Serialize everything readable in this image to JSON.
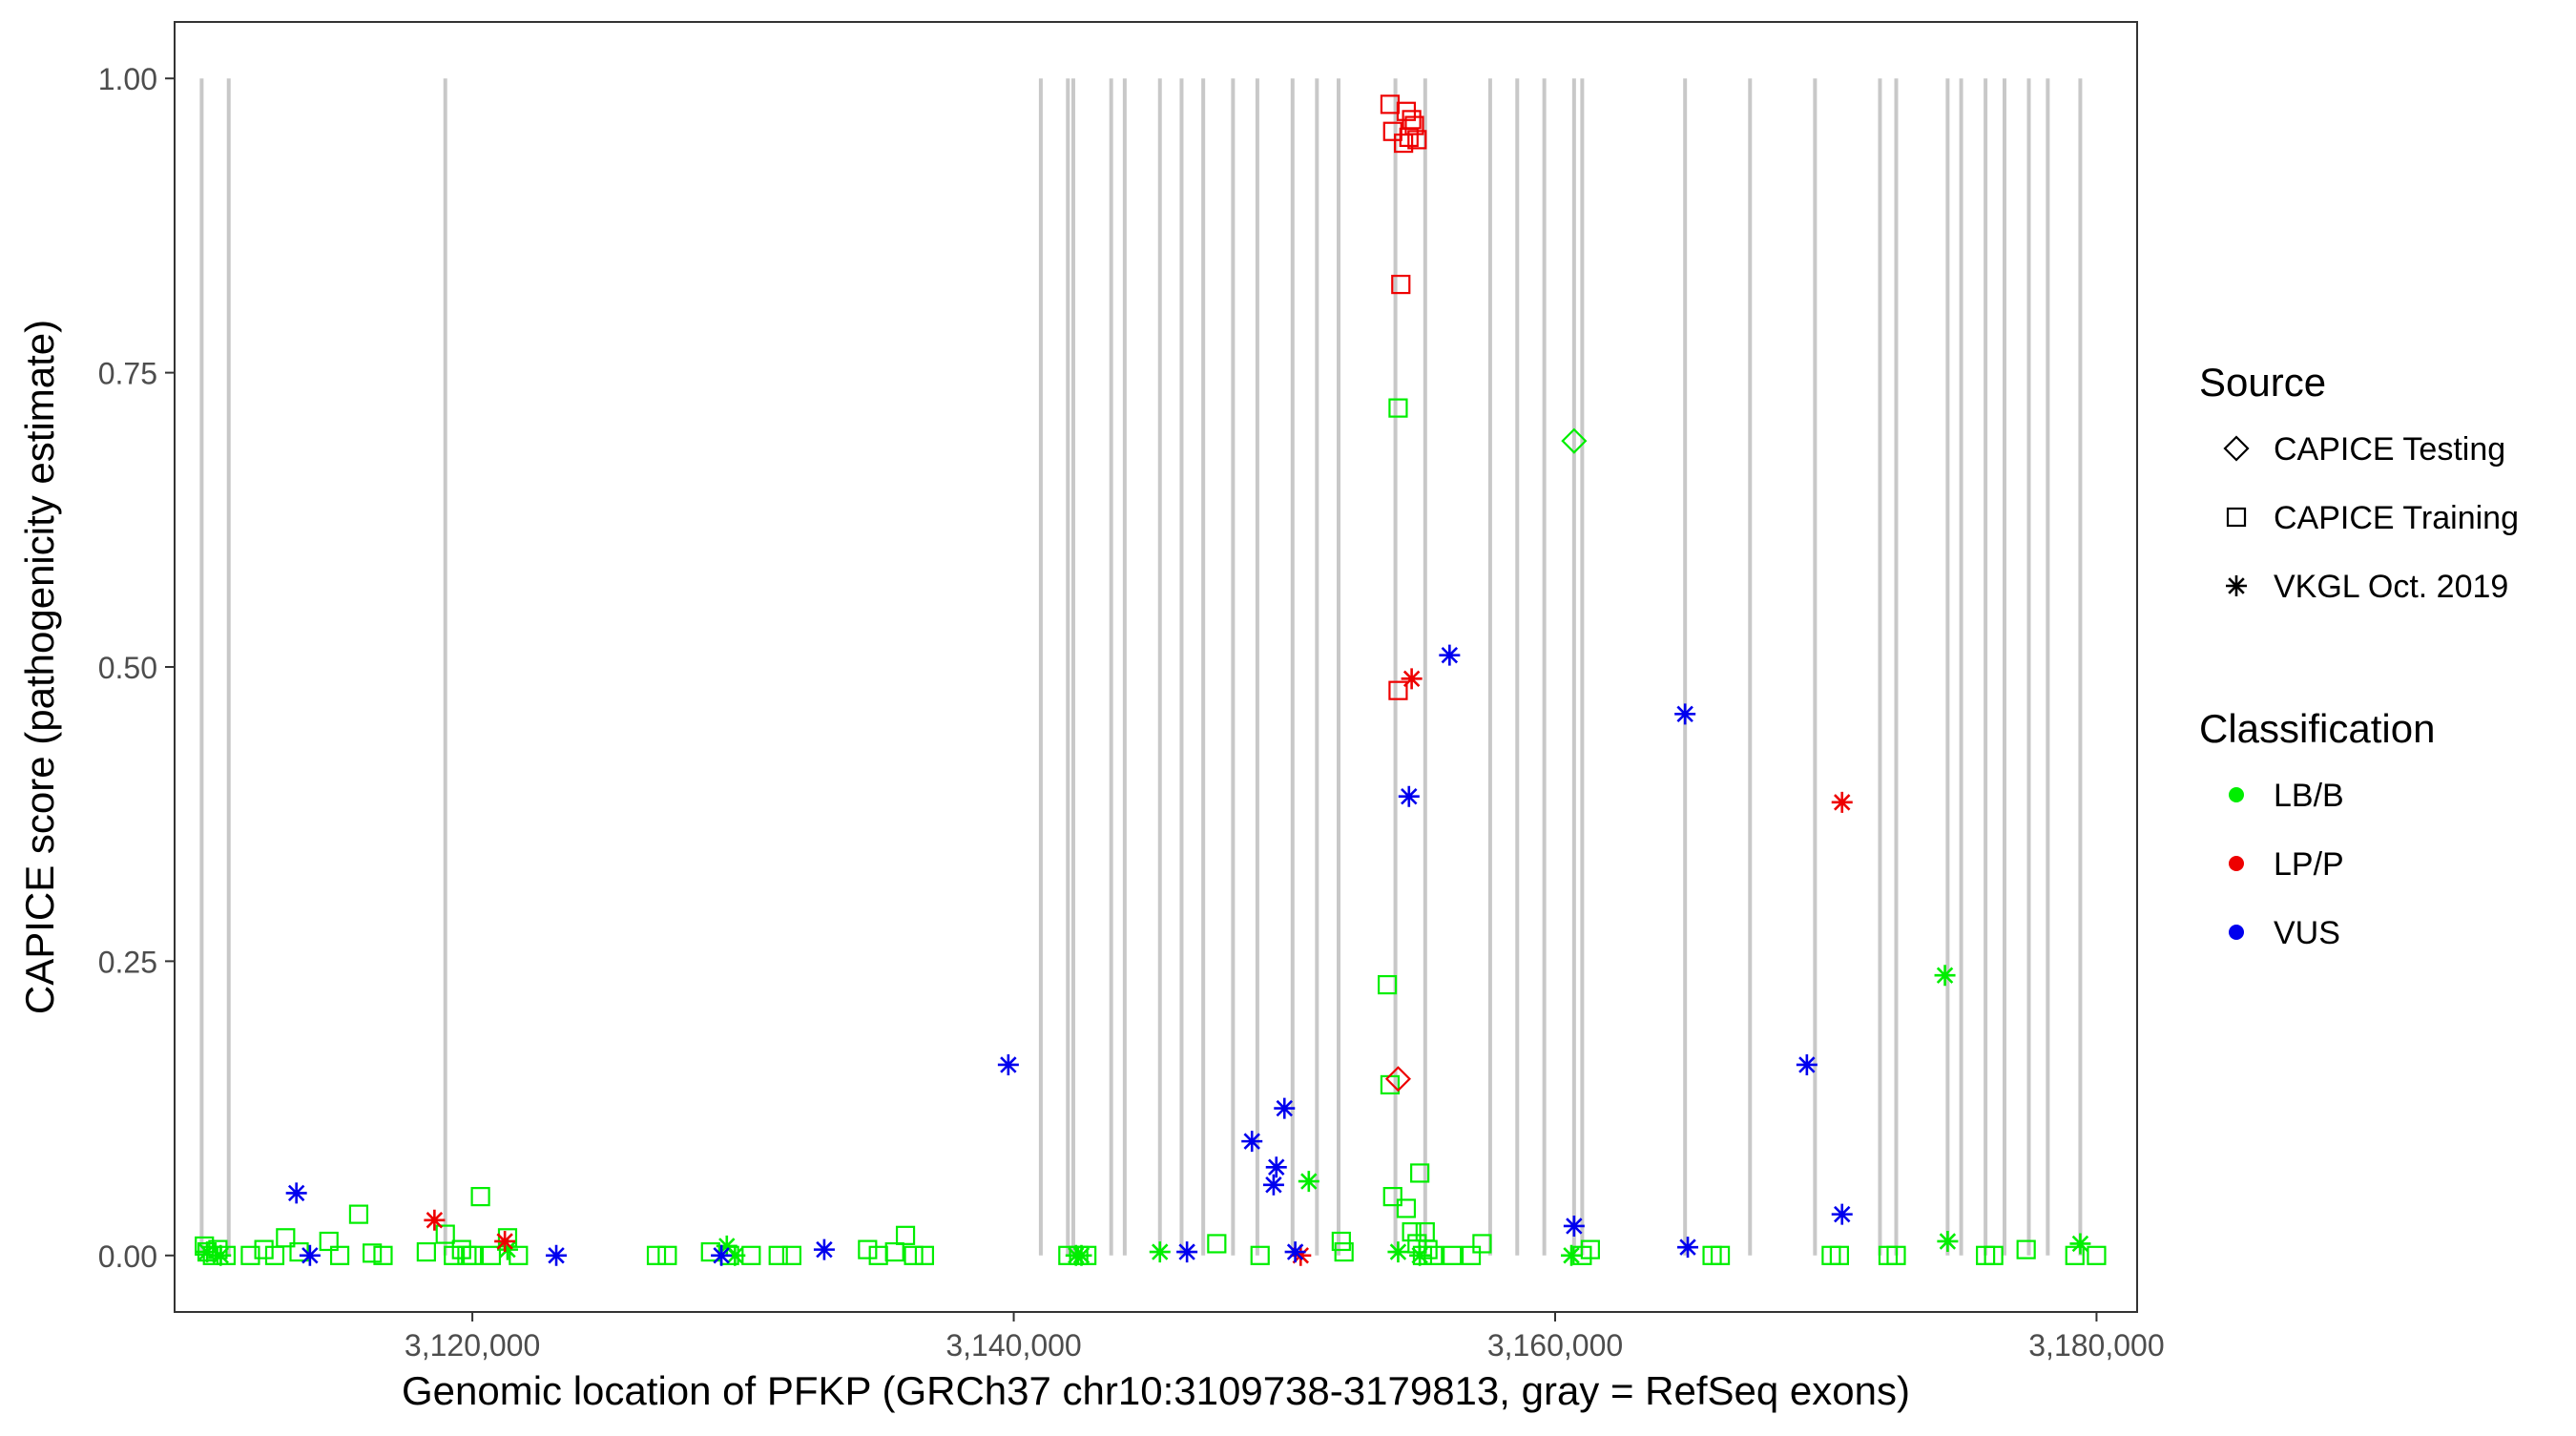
{
  "chart_data": {
    "type": "scatter",
    "title": "",
    "xlabel": "Genomic location of PFKP (GRCh37 chr10:3109738-3179813, gray = RefSeq exons)",
    "ylabel": "CAPICE score (pathogenicity estimate)",
    "xlim": [
      3109000,
      3181500
    ],
    "ylim": [
      -0.048,
      1.048
    ],
    "x_ticks": [
      3120000,
      3140000,
      3160000,
      3180000
    ],
    "x_tick_labels": [
      "3,120,000",
      "3,140,000",
      "3,160,000",
      "3,180,000"
    ],
    "y_ticks": [
      0,
      0.25,
      0.5,
      0.75,
      1.0
    ],
    "y_tick_labels": [
      "0.00",
      "0.25",
      "0.50",
      "0.75",
      "1.00"
    ],
    "grid": false,
    "exon_color": "#c8c8c8",
    "exons": [
      3110000,
      3111000,
      3119000,
      3141000,
      3142000,
      3142200,
      3143600,
      3144100,
      3145400,
      3146200,
      3147000,
      3148100,
      3149000,
      3150300,
      3151200,
      3152000,
      3154100,
      3155200,
      3157600,
      3158600,
      3159600,
      3160700,
      3161000,
      3164800,
      3167200,
      3169600,
      3172000,
      3172600,
      3174500,
      3175000,
      3175900,
      3176600,
      3177500,
      3178200,
      3179400
    ],
    "legend": {
      "placement": "right",
      "source_title": "Source",
      "source_items": [
        {
          "label": "CAPICE Testing",
          "shape": "diamond"
        },
        {
          "label": "CAPICE Training",
          "shape": "square"
        },
        {
          "label": "VKGL Oct. 2019",
          "shape": "asterisk"
        }
      ],
      "class_title": "Classification",
      "class_items": [
        {
          "label": "LB/B",
          "color": "#00ee00"
        },
        {
          "label": "LP/P",
          "color": "#ee0000"
        },
        {
          "label": "VUS",
          "color": "#0000ee"
        }
      ]
    },
    "series": [
      {
        "name": "LB/B",
        "source": "CAPICE Training",
        "shape": "square",
        "color": "#00ee00",
        "points": [
          [
            3110100,
            0.008
          ],
          [
            3110200,
            0.003
          ],
          [
            3110400,
            0.0
          ],
          [
            3110600,
            0.005
          ],
          [
            3110900,
            0.0
          ],
          [
            3111800,
            0.0
          ],
          [
            3112300,
            0.005
          ],
          [
            3112700,
            0.0
          ],
          [
            3113100,
            0.015
          ],
          [
            3113600,
            0.003
          ],
          [
            3114700,
            0.012
          ],
          [
            3115100,
            0.0
          ],
          [
            3115800,
            0.035
          ],
          [
            3116300,
            0.002
          ],
          [
            3116700,
            0.0
          ],
          [
            3118300,
            0.003
          ],
          [
            3119000,
            0.018
          ],
          [
            3119300,
            0.0
          ],
          [
            3119600,
            0.005
          ],
          [
            3119800,
            0.0
          ],
          [
            3120000,
            0.0
          ],
          [
            3120300,
            0.05
          ],
          [
            3120700,
            0.0
          ],
          [
            3121300,
            0.015
          ],
          [
            3121700,
            0.0
          ],
          [
            3126800,
            0.0
          ],
          [
            3127200,
            0.0
          ],
          [
            3128800,
            0.003
          ],
          [
            3129500,
            0.0
          ],
          [
            3130300,
            0.0
          ],
          [
            3131300,
            0.0
          ],
          [
            3131800,
            0.0
          ],
          [
            3134600,
            0.005
          ],
          [
            3135000,
            0.0
          ],
          [
            3135600,
            0.003
          ],
          [
            3136000,
            0.017
          ],
          [
            3136300,
            0.0
          ],
          [
            3136700,
            0.0
          ],
          [
            3142000,
            0.0
          ],
          [
            3142400,
            0.0
          ],
          [
            3142700,
            0.0
          ],
          [
            3147500,
            0.01
          ],
          [
            3149100,
            0.0
          ],
          [
            3152100,
            0.012
          ],
          [
            3152200,
            0.003
          ],
          [
            3153800,
            0.23
          ],
          [
            3153900,
            0.145
          ],
          [
            3154000,
            0.05
          ],
          [
            3154200,
            0.72
          ],
          [
            3154500,
            0.04
          ],
          [
            3154700,
            0.02
          ],
          [
            3154900,
            0.01
          ],
          [
            3155000,
            0.07
          ],
          [
            3155100,
            0.0
          ],
          [
            3155200,
            0.02
          ],
          [
            3155300,
            0.005
          ],
          [
            3155500,
            0.0
          ],
          [
            3156200,
            0.0
          ],
          [
            3156900,
            0.0
          ],
          [
            3157300,
            0.01
          ],
          [
            3161000,
            0.0
          ],
          [
            3161300,
            0.005
          ],
          [
            3165800,
            0.0
          ],
          [
            3166100,
            0.0
          ],
          [
            3170200,
            0.0
          ],
          [
            3170500,
            0.0
          ],
          [
            3172300,
            0.0
          ],
          [
            3172600,
            0.0
          ],
          [
            3175900,
            0.0
          ],
          [
            3176200,
            0.0
          ],
          [
            3177400,
            0.005
          ],
          [
            3179200,
            0.0
          ],
          [
            3180000,
            0.0
          ]
        ]
      },
      {
        "name": "LB/B",
        "source": "VKGL Oct. 2019",
        "shape": "asterisk",
        "color": "#00ee00",
        "points": [
          [
            3110200,
            0.003
          ],
          [
            3110700,
            0.0
          ],
          [
            3121300,
            0.005
          ],
          [
            3129400,
            0.008
          ],
          [
            3129700,
            0.0
          ],
          [
            3142300,
            0.0
          ],
          [
            3142500,
            0.0
          ],
          [
            3145400,
            0.003
          ],
          [
            3150900,
            0.063
          ],
          [
            3154200,
            0.003
          ],
          [
            3155000,
            0.0
          ],
          [
            3160600,
            0.0
          ],
          [
            3174400,
            0.238
          ],
          [
            3174500,
            0.012
          ],
          [
            3179400,
            0.01
          ]
        ]
      },
      {
        "name": "LB/B",
        "source": "CAPICE Testing",
        "shape": "diamond",
        "color": "#00ee00",
        "points": [
          [
            3160700,
            0.692
          ]
        ]
      },
      {
        "name": "LP/P",
        "source": "CAPICE Training",
        "shape": "square",
        "color": "#ee0000",
        "points": [
          [
            3153900,
            0.978
          ],
          [
            3154000,
            0.955
          ],
          [
            3154300,
            0.825
          ],
          [
            3154400,
            0.945
          ],
          [
            3154500,
            0.972
          ],
          [
            3154600,
            0.95
          ],
          [
            3154700,
            0.965
          ],
          [
            3154800,
            0.96
          ],
          [
            3154900,
            0.948
          ],
          [
            3154200,
            0.48
          ]
        ]
      },
      {
        "name": "LP/P",
        "source": "VKGL Oct. 2019",
        "shape": "asterisk",
        "color": "#ee0000",
        "points": [
          [
            3118600,
            0.03
          ],
          [
            3121200,
            0.012
          ],
          [
            3150600,
            0.0
          ],
          [
            3154700,
            0.49
          ],
          [
            3170600,
            0.385
          ]
        ]
      },
      {
        "name": "LP/P",
        "source": "CAPICE Testing",
        "shape": "diamond",
        "color": "#ee0000",
        "points": [
          [
            3154200,
            0.15
          ]
        ]
      },
      {
        "name": "VUS",
        "source": "VKGL Oct. 2019",
        "shape": "asterisk",
        "color": "#0000ee",
        "points": [
          [
            3113500,
            0.053
          ],
          [
            3114000,
            0.0
          ],
          [
            3123100,
            0.0
          ],
          [
            3129200,
            0.0
          ],
          [
            3133000,
            0.005
          ],
          [
            3139800,
            0.162
          ],
          [
            3146400,
            0.003
          ],
          [
            3148800,
            0.097
          ],
          [
            3149600,
            0.06
          ],
          [
            3149700,
            0.075
          ],
          [
            3150000,
            0.125
          ],
          [
            3150400,
            0.003
          ],
          [
            3154600,
            0.39
          ],
          [
            3156100,
            0.51
          ],
          [
            3160700,
            0.025
          ],
          [
            3164800,
            0.46
          ],
          [
            3164900,
            0.007
          ],
          [
            3169300,
            0.162
          ],
          [
            3170600,
            0.035
          ]
        ]
      }
    ]
  }
}
